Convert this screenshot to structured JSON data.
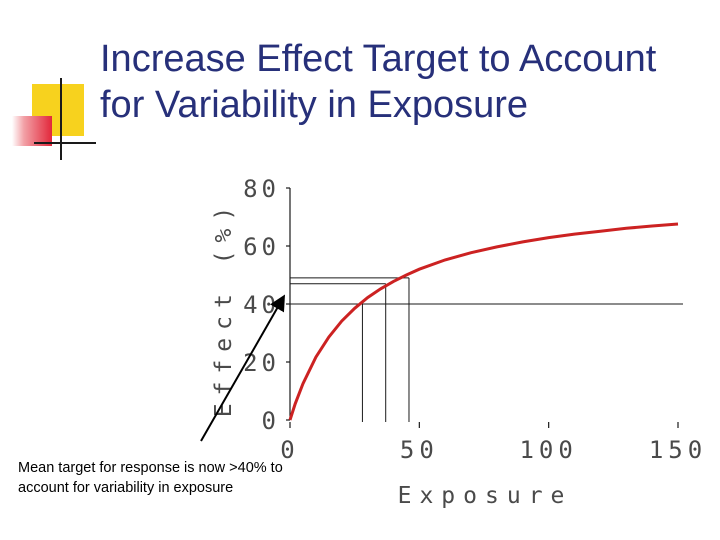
{
  "slide": {
    "title": "Increase Effect Target to Account\nfor Variability in Exposure",
    "caption": "Mean target for response is now >40% to account for variability in exposure"
  },
  "colors": {
    "title": "#27307a",
    "curve": "#cc2222",
    "axis": "#1a1a1a",
    "deco_yellow": "#f7d21e",
    "deco_red": "#e2273a"
  },
  "chart_data": {
    "type": "line",
    "xlabel": "Exposure",
    "ylabel": "Effect (%)",
    "xlim": [
      0,
      150
    ],
    "ylim": [
      0,
      80
    ],
    "x_ticks": [
      "0",
      "50",
      "100",
      "150"
    ],
    "y_ticks": [
      "0",
      "20",
      "40",
      "60",
      "80"
    ],
    "series": [
      {
        "x": [
          0,
          2,
          5,
          10,
          15,
          20,
          25,
          30,
          35,
          40,
          45,
          50,
          60,
          70,
          80,
          90,
          100,
          110,
          120,
          130,
          140,
          150
        ],
        "y": [
          0,
          5.6,
          12.5,
          21.7,
          28.6,
          34.1,
          38.5,
          42.2,
          45.2,
          47.8,
          50.0,
          52.0,
          55.2,
          57.7,
          59.7,
          61.4,
          62.9,
          64.1,
          65.1,
          66.1,
          66.9,
          67.6
        ]
      }
    ],
    "reference_lines": {
      "horizontal_y": [
        40,
        47,
        49
      ],
      "vertical_x": [
        28,
        37,
        46
      ]
    },
    "annotation": "arrow from caption to the 40% level on the y-axis"
  }
}
